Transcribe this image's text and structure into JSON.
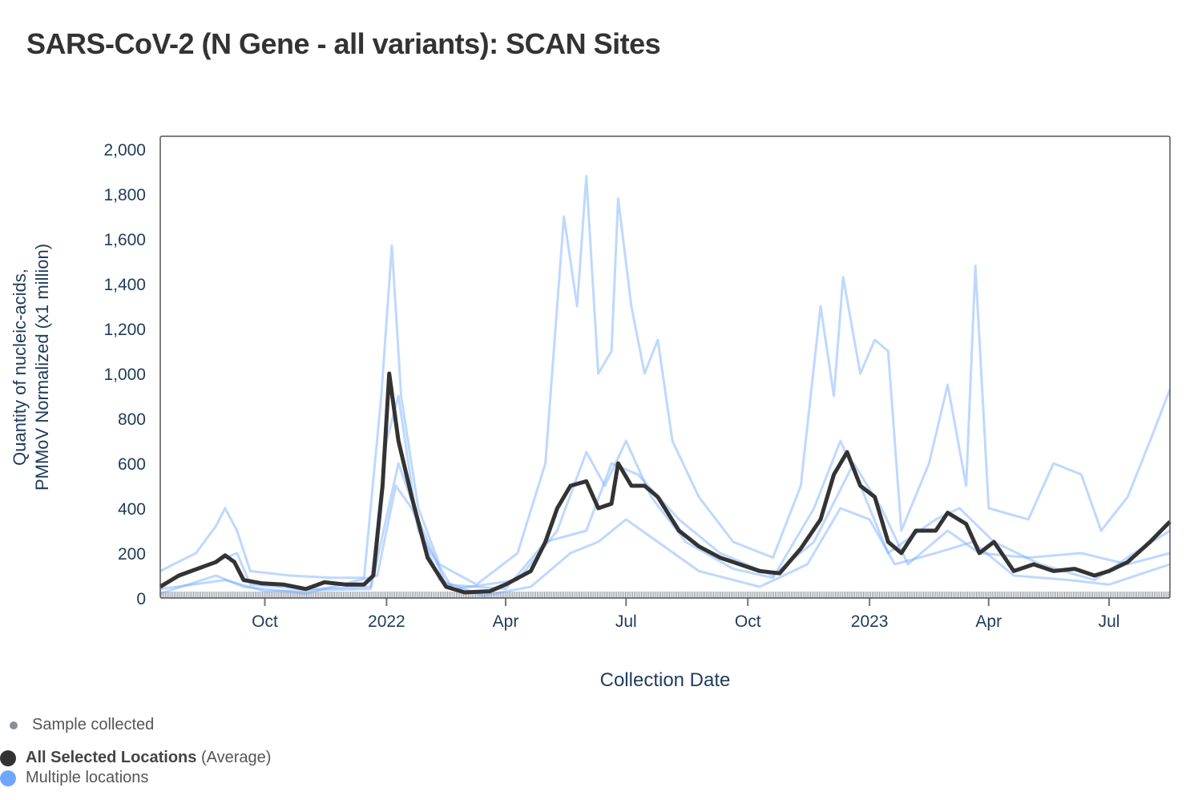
{
  "chart_data": {
    "type": "line",
    "title": "SARS-CoV-2 (N Gene - all variants): SCAN Sites",
    "xlabel": "Collection Date",
    "ylabel_lines": [
      "Quantity of nucleic-acids,",
      "PMMoV Normalized (x1 million)"
    ],
    "xlim": [
      "2021-07-14",
      "2023-08-16"
    ],
    "ylim": [
      0,
      2000
    ],
    "yticks": [
      0,
      200,
      400,
      600,
      800,
      1000,
      1200,
      1400,
      1600,
      1800,
      2000
    ],
    "ytick_labels": [
      "0",
      "200",
      "400",
      "600",
      "800",
      "1,000",
      "1,200",
      "1,400",
      "1,600",
      "1,800",
      "2,000"
    ],
    "xticks": [
      {
        "date": "2021-10-01",
        "label": "Oct"
      },
      {
        "date": "2022-01-01",
        "label": "2022"
      },
      {
        "date": "2022-04-01",
        "label": "Apr"
      },
      {
        "date": "2022-07-01",
        "label": "Jul"
      },
      {
        "date": "2022-10-01",
        "label": "Oct"
      },
      {
        "date": "2023-01-01",
        "label": "2023"
      },
      {
        "date": "2023-04-01",
        "label": "Apr"
      },
      {
        "date": "2023-07-01",
        "label": "Jul"
      }
    ],
    "colors": {
      "average": "#333333",
      "locations": "#6ea8fe",
      "sample": "#888f99",
      "axis": "#1f3b5a"
    },
    "legend": {
      "sample": "Sample collected",
      "average_bold": "All Selected Locations",
      "average_suffix": "(Average)",
      "locations": "Multiple locations"
    },
    "series": [
      {
        "name": "Multiple locations",
        "kind": "location",
        "points": [
          [
            "2021-07-14",
            120
          ],
          [
            "2021-08-10",
            200
          ],
          [
            "2021-08-25",
            320
          ],
          [
            "2021-09-01",
            400
          ],
          [
            "2021-09-10",
            300
          ],
          [
            "2021-09-20",
            120
          ],
          [
            "2021-10-20",
            100
          ],
          [
            "2021-11-20",
            90
          ],
          [
            "2021-12-15",
            90
          ],
          [
            "2021-12-28",
            900
          ],
          [
            "2022-01-05",
            1570
          ],
          [
            "2022-01-12",
            900
          ],
          [
            "2022-01-25",
            400
          ],
          [
            "2022-02-10",
            150
          ],
          [
            "2022-03-10",
            60
          ],
          [
            "2022-04-10",
            200
          ],
          [
            "2022-05-01",
            600
          ],
          [
            "2022-05-15",
            1700
          ],
          [
            "2022-05-25",
            1300
          ],
          [
            "2022-06-01",
            1880
          ],
          [
            "2022-06-10",
            1000
          ],
          [
            "2022-06-20",
            1100
          ],
          [
            "2022-06-25",
            1780
          ],
          [
            "2022-07-05",
            1300
          ],
          [
            "2022-07-15",
            1000
          ],
          [
            "2022-07-25",
            1150
          ],
          [
            "2022-08-05",
            700
          ],
          [
            "2022-08-25",
            450
          ],
          [
            "2022-09-20",
            250
          ],
          [
            "2022-10-20",
            180
          ],
          [
            "2022-11-10",
            500
          ],
          [
            "2022-11-25",
            1300
          ],
          [
            "2022-12-05",
            900
          ],
          [
            "2022-12-12",
            1430
          ],
          [
            "2022-12-25",
            1000
          ],
          [
            "2023-01-05",
            1150
          ],
          [
            "2023-01-15",
            1100
          ],
          [
            "2023-01-25",
            300
          ],
          [
            "2023-02-15",
            600
          ],
          [
            "2023-03-01",
            950
          ],
          [
            "2023-03-15",
            500
          ],
          [
            "2023-03-22",
            1480
          ],
          [
            "2023-04-01",
            400
          ],
          [
            "2023-05-01",
            350
          ],
          [
            "2023-05-20",
            600
          ],
          [
            "2023-06-10",
            550
          ],
          [
            "2023-06-25",
            300
          ],
          [
            "2023-07-15",
            450
          ],
          [
            "2023-08-01",
            700
          ],
          [
            "2023-08-16",
            930
          ]
        ]
      },
      {
        "name": "Multiple locations",
        "kind": "location",
        "points": [
          [
            "2021-07-14",
            60
          ],
          [
            "2021-08-20",
            150
          ],
          [
            "2021-09-10",
            200
          ],
          [
            "2021-09-20",
            60
          ],
          [
            "2021-11-01",
            40
          ],
          [
            "2021-12-20",
            50
          ],
          [
            "2022-01-01",
            700
          ],
          [
            "2022-01-10",
            900
          ],
          [
            "2022-01-25",
            300
          ],
          [
            "2022-02-20",
            40
          ],
          [
            "2022-04-10",
            80
          ],
          [
            "2022-05-10",
            300
          ],
          [
            "2022-06-01",
            650
          ],
          [
            "2022-06-15",
            500
          ],
          [
            "2022-07-01",
            700
          ],
          [
            "2022-07-20",
            450
          ],
          [
            "2022-08-15",
            250
          ],
          [
            "2022-09-20",
            130
          ],
          [
            "2022-10-20",
            90
          ],
          [
            "2022-11-20",
            400
          ],
          [
            "2022-12-10",
            700
          ],
          [
            "2022-12-25",
            500
          ],
          [
            "2023-01-15",
            200
          ],
          [
            "2023-02-20",
            350
          ],
          [
            "2023-03-10",
            400
          ],
          [
            "2023-04-05",
            250
          ],
          [
            "2023-05-10",
            150
          ],
          [
            "2023-06-20",
            80
          ],
          [
            "2023-07-20",
            200
          ],
          [
            "2023-08-16",
            300
          ]
        ]
      },
      {
        "name": "Multiple locations",
        "kind": "location",
        "points": [
          [
            "2021-07-14",
            20
          ],
          [
            "2021-08-25",
            100
          ],
          [
            "2021-09-15",
            50
          ],
          [
            "2021-11-01",
            20
          ],
          [
            "2021-12-25",
            100
          ],
          [
            "2022-01-08",
            500
          ],
          [
            "2022-01-20",
            400
          ],
          [
            "2022-02-10",
            80
          ],
          [
            "2022-03-15",
            10
          ],
          [
            "2022-04-20",
            50
          ],
          [
            "2022-05-20",
            200
          ],
          [
            "2022-06-10",
            250
          ],
          [
            "2022-07-01",
            350
          ],
          [
            "2022-07-25",
            250
          ],
          [
            "2022-08-25",
            120
          ],
          [
            "2022-10-10",
            50
          ],
          [
            "2022-11-15",
            150
          ],
          [
            "2022-12-10",
            400
          ],
          [
            "2023-01-01",
            350
          ],
          [
            "2023-01-20",
            150
          ],
          [
            "2023-02-20",
            200
          ],
          [
            "2023-03-20",
            250
          ],
          [
            "2023-04-20",
            100
          ],
          [
            "2023-06-01",
            80
          ],
          [
            "2023-07-01",
            60
          ],
          [
            "2023-08-16",
            150
          ]
        ]
      },
      {
        "name": "Multiple locations",
        "kind": "location",
        "points": [
          [
            "2021-07-14",
            40
          ],
          [
            "2021-09-01",
            80
          ],
          [
            "2021-10-01",
            30
          ],
          [
            "2021-12-20",
            40
          ],
          [
            "2022-01-10",
            600
          ],
          [
            "2022-01-25",
            350
          ],
          [
            "2022-02-15",
            60
          ],
          [
            "2022-04-01",
            40
          ],
          [
            "2022-05-01",
            250
          ],
          [
            "2022-06-01",
            300
          ],
          [
            "2022-06-20",
            600
          ],
          [
            "2022-07-10",
            550
          ],
          [
            "2022-08-10",
            350
          ],
          [
            "2022-09-10",
            200
          ],
          [
            "2022-10-20",
            100
          ],
          [
            "2022-11-20",
            250
          ],
          [
            "2022-12-20",
            600
          ],
          [
            "2023-01-10",
            400
          ],
          [
            "2023-01-30",
            150
          ],
          [
            "2023-03-01",
            300
          ],
          [
            "2023-03-25",
            200
          ],
          [
            "2023-05-01",
            180
          ],
          [
            "2023-06-10",
            200
          ],
          [
            "2023-07-15",
            150
          ],
          [
            "2023-08-16",
            200
          ]
        ]
      },
      {
        "name": "All Selected Locations (Average)",
        "kind": "average",
        "points": [
          [
            "2021-07-14",
            50
          ],
          [
            "2021-07-28",
            100
          ],
          [
            "2021-08-11",
            130
          ],
          [
            "2021-08-25",
            160
          ],
          [
            "2021-09-01",
            190
          ],
          [
            "2021-09-08",
            160
          ],
          [
            "2021-09-15",
            80
          ],
          [
            "2021-09-29",
            65
          ],
          [
            "2021-10-15",
            60
          ],
          [
            "2021-11-01",
            40
          ],
          [
            "2021-11-15",
            70
          ],
          [
            "2021-12-01",
            60
          ],
          [
            "2021-12-15",
            60
          ],
          [
            "2021-12-22",
            100
          ],
          [
            "2021-12-29",
            500
          ],
          [
            "2022-01-03",
            1000
          ],
          [
            "2022-01-10",
            700
          ],
          [
            "2022-01-20",
            450
          ],
          [
            "2022-02-01",
            180
          ],
          [
            "2022-02-15",
            50
          ],
          [
            "2022-03-01",
            25
          ],
          [
            "2022-03-20",
            30
          ],
          [
            "2022-04-01",
            60
          ],
          [
            "2022-04-20",
            120
          ],
          [
            "2022-05-01",
            250
          ],
          [
            "2022-05-10",
            400
          ],
          [
            "2022-05-20",
            500
          ],
          [
            "2022-06-01",
            520
          ],
          [
            "2022-06-10",
            400
          ],
          [
            "2022-06-20",
            420
          ],
          [
            "2022-06-25",
            600
          ],
          [
            "2022-07-05",
            500
          ],
          [
            "2022-07-15",
            500
          ],
          [
            "2022-07-25",
            450
          ],
          [
            "2022-08-10",
            300
          ],
          [
            "2022-08-25",
            230
          ],
          [
            "2022-09-10",
            180
          ],
          [
            "2022-09-25",
            150
          ],
          [
            "2022-10-10",
            120
          ],
          [
            "2022-10-25",
            110
          ],
          [
            "2022-11-10",
            220
          ],
          [
            "2022-11-25",
            350
          ],
          [
            "2022-12-05",
            550
          ],
          [
            "2022-12-15",
            650
          ],
          [
            "2022-12-25",
            500
          ],
          [
            "2023-01-05",
            450
          ],
          [
            "2023-01-15",
            250
          ],
          [
            "2023-01-25",
            200
          ],
          [
            "2023-02-05",
            300
          ],
          [
            "2023-02-20",
            300
          ],
          [
            "2023-03-01",
            380
          ],
          [
            "2023-03-15",
            330
          ],
          [
            "2023-03-25",
            200
          ],
          [
            "2023-04-05",
            250
          ],
          [
            "2023-04-20",
            120
          ],
          [
            "2023-05-05",
            150
          ],
          [
            "2023-05-20",
            120
          ],
          [
            "2023-06-05",
            130
          ],
          [
            "2023-06-20",
            100
          ],
          [
            "2023-07-01",
            120
          ],
          [
            "2023-07-15",
            160
          ],
          [
            "2023-08-01",
            250
          ],
          [
            "2023-08-16",
            340
          ]
        ]
      }
    ]
  }
}
